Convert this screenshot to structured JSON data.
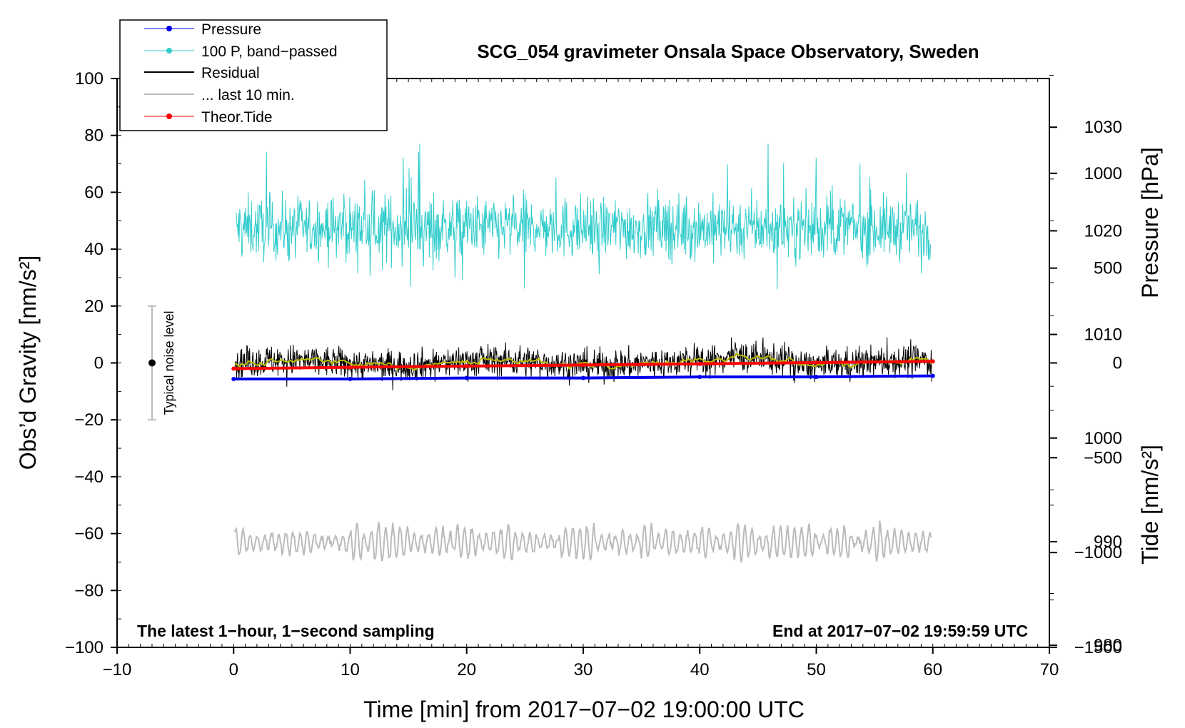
{
  "chart_data": {
    "type": "line",
    "title": "SCG_054 gravimeter Onsala Space Observatory, Sweden",
    "xlabel": "Time [min] from 2017−07−02 19:00:00 UTC",
    "ylabel_left": "Obs’d Gravity [nm/s²]",
    "ylabel_pressure": "Pressure [hPa]",
    "ylabel_tide": "Tide [nm/s²]",
    "xlim": [
      -10,
      70
    ],
    "ylim": [
      -100,
      100
    ],
    "pressure_lim": [
      979.8,
      1034.7
    ],
    "tide_lim": [
      -1500,
      1500
    ],
    "x_ticks": [
      "−10",
      "0",
      "10",
      "20",
      "30",
      "40",
      "50",
      "60",
      "70"
    ],
    "x_tick_values": [
      -10,
      0,
      10,
      20,
      30,
      40,
      50,
      60,
      70
    ],
    "y_ticks": [
      "100",
      "80",
      "60",
      "40",
      "20",
      "0",
      "−20",
      "−40",
      "−60",
      "−80",
      "−100"
    ],
    "y_tick_values": [
      100,
      80,
      60,
      40,
      20,
      0,
      -20,
      -40,
      -60,
      -80,
      -100
    ],
    "pressure_ticks": [
      "1030",
      "1020",
      "1010",
      "1000",
      "990",
      "980"
    ],
    "pressure_tick_values": [
      1030,
      1020,
      1010,
      1000,
      990,
      980
    ],
    "tide_ticks": [
      "1000",
      "500",
      "0",
      "−500",
      "−1000",
      "−1500"
    ],
    "tide_tick_values": [
      1000,
      500,
      0,
      -500,
      -1000,
      -1500
    ],
    "series": [
      {
        "name": "Pressure",
        "color": "#0000ee",
        "axis": "pressure",
        "x": [
          0,
          10,
          20,
          30,
          40,
          50,
          60
        ],
        "y": [
          1005.7,
          1005.7,
          1005.8,
          1005.8,
          1005.9,
          1005.9,
          1006.0
        ]
      },
      {
        "name": "100 P, band−passed",
        "color": "#33cccc",
        "axis": "left",
        "x_range": [
          0,
          60
        ],
        "center": 47.5,
        "amplitude_range": [
          18,
          77
        ]
      },
      {
        "name": "Residual",
        "color": "#000000",
        "axis": "left",
        "x_range": [
          0,
          60
        ],
        "center": 0,
        "amplitude_range": [
          -12,
          9
        ]
      },
      {
        "name": "... last 10 min.",
        "color": "#bbbbbb",
        "axis": "left",
        "x_range": [
          0,
          60
        ],
        "center": -63,
        "amplitude_range": [
          -71,
          -54
        ]
      },
      {
        "name": "Theor.Tide",
        "color": "#ff0000",
        "axis": "tide",
        "x": [
          0,
          10,
          20,
          30,
          40,
          50,
          60
        ],
        "y": [
          -30,
          -23,
          -17,
          -11,
          -5,
          2,
          8
        ]
      }
    ],
    "smoothed_residual_color": "#bbbb00",
    "legend_position": "top-left",
    "noise_bar": {
      "label": "Typical noise level",
      "x": -7,
      "y_range": [
        -20,
        20
      ],
      "center": 0
    },
    "footnote_left": "The latest 1−hour, 1−second sampling",
    "footnote_right": "End at 2017−07−02 19:59:59 UTC"
  }
}
